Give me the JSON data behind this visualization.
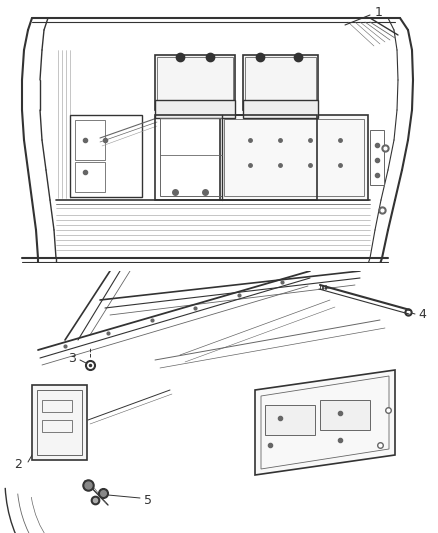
{
  "bg_color": "#ffffff",
  "line_color": "#666666",
  "dark_line": "#333333",
  "light_line": "#999999",
  "fig_width": 4.38,
  "fig_height": 5.33,
  "dpi": 100
}
